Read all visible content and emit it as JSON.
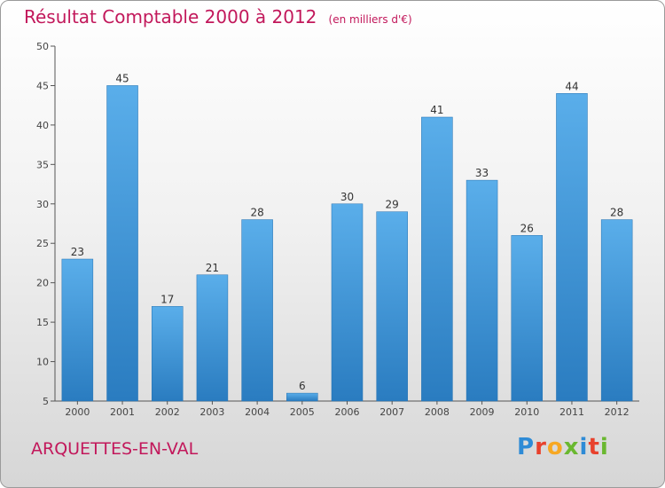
{
  "header": {
    "title": "Résultat Comptable 2000 à 2012",
    "unit": "(en milliers d'€)"
  },
  "commune": "ARQUETTES-EN-VAL",
  "logo": {
    "text": "Proxiti",
    "letter_colors": [
      "#2e8bd6",
      "#e8412c",
      "#f7a823",
      "#6ab830",
      "#2e8bd6",
      "#e8412c",
      "#6ab830"
    ]
  },
  "colors": {
    "title": "#c2185b",
    "bar_light": "#5aaeea",
    "bar_dark": "#2a7cc0",
    "axis": "#555555"
  },
  "chart_data": {
    "type": "bar",
    "categories": [
      "2000",
      "2001",
      "2002",
      "2003",
      "2004",
      "2005",
      "2006",
      "2007",
      "2008",
      "2009",
      "2010",
      "2011",
      "2012"
    ],
    "values": [
      23,
      45,
      17,
      21,
      28,
      6,
      30,
      29,
      41,
      33,
      26,
      44,
      28
    ],
    "data_labels": [
      "23",
      "45",
      "17",
      "21",
      "28",
      "6",
      "30",
      "29",
      "41",
      "33",
      "26",
      "44",
      "28"
    ],
    "ylim": [
      5,
      50
    ],
    "yticks": [
      5,
      10,
      15,
      20,
      25,
      30,
      35,
      40,
      45,
      50
    ],
    "title": "Résultat Comptable 2000 à 2012",
    "xlabel": "",
    "ylabel": "",
    "grid": false,
    "legend": "none"
  }
}
